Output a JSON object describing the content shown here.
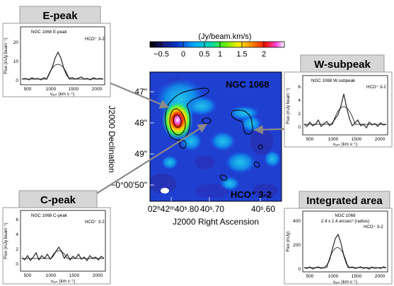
{
  "colorbar": {
    "unit": "(Jy/beam.km/s)",
    "ticks": [
      "−0.5",
      "0",
      "0.5",
      "1",
      "1.5",
      "2"
    ]
  },
  "map": {
    "object_label": "NGC 1068",
    "line_label": "HCO⁺ 3-2",
    "dec_ticks": [
      "47\"",
      "48\"",
      "49\"",
      "−0°00'50\""
    ],
    "ra_ticks": [
      "02ʰ42ᵐ40ˢ.80",
      "40ˢ.70",
      "40ˢ.60"
    ],
    "xlabel": "J2000 Right Ascension",
    "ylabel": "J2000 Declination"
  },
  "panels": {
    "e_peak": {
      "title": "E-peak",
      "header": "NGC 1068 E-peak",
      "line": "HCO⁺ 3-2",
      "ylabel": "Flux (mJy beam⁻¹)",
      "xlabel": "vₒₚₜ (km s⁻¹)",
      "y_ticks": [
        "0",
        "10",
        "20"
      ],
      "x_ticks": [
        "500",
        "1000",
        "1500",
        "2000"
      ]
    },
    "w_subpeak": {
      "title": "W-subpeak",
      "header": "NGC 1068 W-subpeak",
      "line": "HCO⁺ 3-2",
      "ylabel": "Flux (mJy beam⁻¹)",
      "xlabel": "vₒₚₜ (km s⁻¹)",
      "y_ticks": [
        "0",
        "2",
        "4",
        "6"
      ],
      "x_ticks": [
        "500",
        "1000",
        "1500",
        "2000"
      ]
    },
    "c_peak": {
      "title": "C-peak",
      "header": "NGC 1068 C-peak",
      "line": "HCO⁺ 3-2",
      "ylabel": "Flux (mJy beam⁻¹)",
      "xlabel": "vₒₚₜ (km s⁻¹)",
      "y_ticks": [
        "0",
        "2",
        "4",
        "6"
      ],
      "x_ticks": [
        "500",
        "1000",
        "1500",
        "2000"
      ]
    },
    "integrated": {
      "title": "Integrated area",
      "header": "NGC 1068",
      "header2": "2.4 x 2.4 arcsec² (radius)",
      "line": "HCO⁺ 3-2",
      "ylabel": "Flux (mJy)",
      "xlabel": "vₒₚₜ (km s⁻¹)",
      "y_ticks": [
        "0",
        "200",
        "400"
      ],
      "x_ticks": [
        "500",
        "1000",
        "1500",
        "2000"
      ]
    }
  }
}
